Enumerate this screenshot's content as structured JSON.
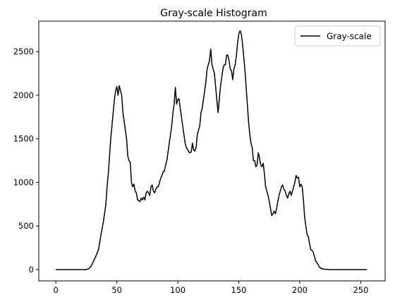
{
  "chart_data": {
    "type": "line",
    "title": "Gray-scale Histogram",
    "xlabel": "",
    "ylabel": "",
    "xlim": [
      -14,
      270
    ],
    "ylim": [
      -130,
      2850
    ],
    "xticks": [
      0,
      50,
      100,
      150,
      200,
      250
    ],
    "yticks": [
      0,
      500,
      1000,
      1500,
      2000,
      2500
    ],
    "grid": false,
    "legend_position": "top-right",
    "series": [
      {
        "name": "Gray-scale",
        "color": "#000000",
        "points": [
          [
            0,
            0
          ],
          [
            10,
            0
          ],
          [
            20,
            0
          ],
          [
            25,
            0
          ],
          [
            27,
            10
          ],
          [
            29,
            40
          ],
          [
            31,
            100
          ],
          [
            33,
            160
          ],
          [
            35,
            230
          ],
          [
            37,
            400
          ],
          [
            39,
            550
          ],
          [
            41,
            750
          ],
          [
            42,
            950
          ],
          [
            43,
            1100
          ],
          [
            44,
            1300
          ],
          [
            45,
            1500
          ],
          [
            46,
            1650
          ],
          [
            47,
            1800
          ],
          [
            48,
            1950
          ],
          [
            49,
            2050
          ],
          [
            50,
            2100
          ],
          [
            51,
            2000
          ],
          [
            52,
            2110
          ],
          [
            53,
            2050
          ],
          [
            54,
            2000
          ],
          [
            55,
            1800
          ],
          [
            56,
            1700
          ],
          [
            57,
            1600
          ],
          [
            58,
            1500
          ],
          [
            59,
            1300
          ],
          [
            60,
            1250
          ],
          [
            61,
            1230
          ],
          [
            62,
            1000
          ],
          [
            63,
            950
          ],
          [
            64,
            980
          ],
          [
            65,
            900
          ],
          [
            66,
            880
          ],
          [
            67,
            800
          ],
          [
            68,
            790
          ],
          [
            69,
            780
          ],
          [
            70,
            820
          ],
          [
            71,
            800
          ],
          [
            72,
            830
          ],
          [
            73,
            800
          ],
          [
            74,
            880
          ],
          [
            75,
            900
          ],
          [
            76,
            880
          ],
          [
            77,
            850
          ],
          [
            78,
            950
          ],
          [
            79,
            970
          ],
          [
            80,
            900
          ],
          [
            81,
            880
          ],
          [
            82,
            920
          ],
          [
            83,
            950
          ],
          [
            84,
            950
          ],
          [
            85,
            1000
          ],
          [
            86,
            1050
          ],
          [
            87,
            1080
          ],
          [
            88,
            1120
          ],
          [
            89,
            1130
          ],
          [
            90,
            1200
          ],
          [
            91,
            1250
          ],
          [
            92,
            1350
          ],
          [
            93,
            1450
          ],
          [
            94,
            1550
          ],
          [
            95,
            1650
          ],
          [
            96,
            1800
          ],
          [
            97,
            1900
          ],
          [
            98,
            2090
          ],
          [
            99,
            1900
          ],
          [
            100,
            1950
          ],
          [
            101,
            1960
          ],
          [
            102,
            1850
          ],
          [
            103,
            1750
          ],
          [
            104,
            1650
          ],
          [
            105,
            1550
          ],
          [
            106,
            1450
          ],
          [
            107,
            1400
          ],
          [
            108,
            1380
          ],
          [
            109,
            1350
          ],
          [
            110,
            1340
          ],
          [
            111,
            1350
          ],
          [
            112,
            1450
          ],
          [
            113,
            1370
          ],
          [
            114,
            1360
          ],
          [
            115,
            1400
          ],
          [
            116,
            1550
          ],
          [
            117,
            1600
          ],
          [
            118,
            1650
          ],
          [
            119,
            1800
          ],
          [
            120,
            1850
          ],
          [
            121,
            1950
          ],
          [
            122,
            2050
          ],
          [
            123,
            2150
          ],
          [
            124,
            2300
          ],
          [
            125,
            2350
          ],
          [
            126,
            2400
          ],
          [
            127,
            2530
          ],
          [
            128,
            2350
          ],
          [
            129,
            2300
          ],
          [
            130,
            2250
          ],
          [
            131,
            2100
          ],
          [
            132,
            1950
          ],
          [
            133,
            1800
          ],
          [
            134,
            1950
          ],
          [
            135,
            2100
          ],
          [
            136,
            2200
          ],
          [
            137,
            2300
          ],
          [
            138,
            2350
          ],
          [
            139,
            2350
          ],
          [
            140,
            2460
          ],
          [
            141,
            2460
          ],
          [
            142,
            2400
          ],
          [
            143,
            2300
          ],
          [
            144,
            2280
          ],
          [
            145,
            2180
          ],
          [
            146,
            2300
          ],
          [
            147,
            2350
          ],
          [
            148,
            2450
          ],
          [
            149,
            2600
          ],
          [
            150,
            2700
          ],
          [
            151,
            2740
          ],
          [
            152,
            2710
          ],
          [
            153,
            2600
          ],
          [
            154,
            2450
          ],
          [
            155,
            2300
          ],
          [
            156,
            2100
          ],
          [
            157,
            1900
          ],
          [
            158,
            1700
          ],
          [
            159,
            1550
          ],
          [
            160,
            1450
          ],
          [
            161,
            1400
          ],
          [
            162,
            1250
          ],
          [
            163,
            1250
          ],
          [
            164,
            1180
          ],
          [
            165,
            1200
          ],
          [
            166,
            1340
          ],
          [
            167,
            1280
          ],
          [
            168,
            1200
          ],
          [
            169,
            1180
          ],
          [
            170,
            1220
          ],
          [
            171,
            1100
          ],
          [
            172,
            950
          ],
          [
            173,
            900
          ],
          [
            174,
            850
          ],
          [
            175,
            780
          ],
          [
            176,
            700
          ],
          [
            177,
            620
          ],
          [
            178,
            640
          ],
          [
            179,
            670
          ],
          [
            180,
            640
          ],
          [
            181,
            700
          ],
          [
            182,
            780
          ],
          [
            183,
            850
          ],
          [
            184,
            900
          ],
          [
            185,
            950
          ],
          [
            186,
            970
          ],
          [
            187,
            920
          ],
          [
            188,
            900
          ],
          [
            189,
            850
          ],
          [
            190,
            820
          ],
          [
            191,
            870
          ],
          [
            192,
            900
          ],
          [
            193,
            850
          ],
          [
            194,
            900
          ],
          [
            195,
            950
          ],
          [
            196,
            1000
          ],
          [
            197,
            1080
          ],
          [
            198,
            1050
          ],
          [
            199,
            1060
          ],
          [
            200,
            950
          ],
          [
            201,
            980
          ],
          [
            202,
            950
          ],
          [
            203,
            800
          ],
          [
            204,
            600
          ],
          [
            205,
            500
          ],
          [
            206,
            400
          ],
          [
            207,
            380
          ],
          [
            208,
            300
          ],
          [
            209,
            230
          ],
          [
            210,
            220
          ],
          [
            211,
            200
          ],
          [
            212,
            150
          ],
          [
            213,
            100
          ],
          [
            214,
            80
          ],
          [
            215,
            60
          ],
          [
            216,
            30
          ],
          [
            217,
            20
          ],
          [
            218,
            10
          ],
          [
            220,
            5
          ],
          [
            225,
            0
          ],
          [
            230,
            0
          ],
          [
            240,
            0
          ],
          [
            250,
            0
          ],
          [
            255,
            0
          ]
        ]
      }
    ]
  }
}
